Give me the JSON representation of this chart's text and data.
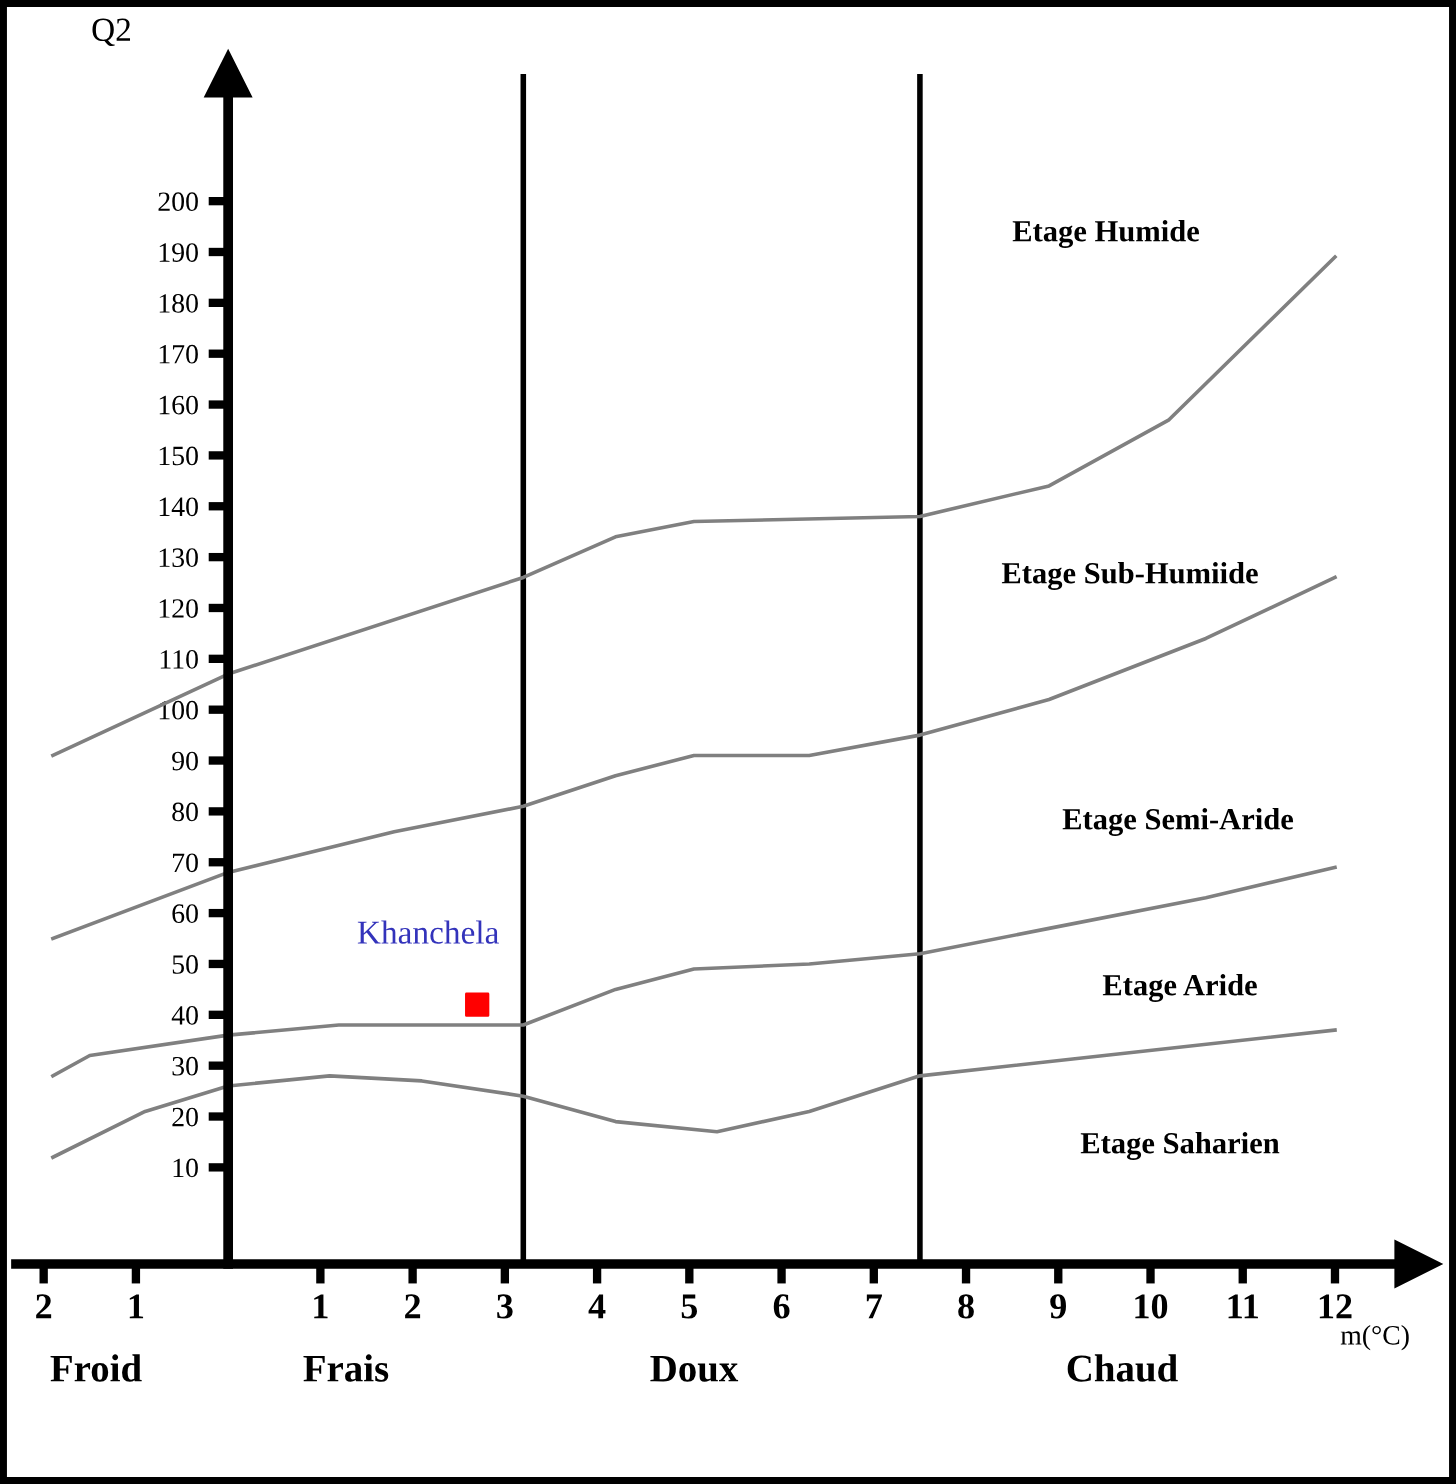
{
  "chart_data": {
    "type": "line",
    "xlabel": "m(°C)",
    "ylabel": "Q2",
    "xlim": [
      -2.3,
      12.9
    ],
    "ylim": [
      -9,
      225
    ],
    "xticks": [
      {
        "value": -2,
        "label": "2"
      },
      {
        "value": -1,
        "label": "1"
      },
      1,
      2,
      3,
      4,
      5,
      6,
      7,
      8,
      9,
      10,
      11,
      12
    ],
    "yticks": [
      10,
      20,
      30,
      40,
      50,
      60,
      70,
      80,
      90,
      100,
      110,
      120,
      130,
      140,
      150,
      160,
      170,
      180,
      190,
      200
    ],
    "grid": false,
    "legend": false,
    "marker": "none",
    "line_style": "solid",
    "series": [
      {
        "color": "#808080",
        "x": [
          -1.9,
          0,
          3.2,
          4.2,
          5.05,
          7.5,
          8.9,
          10.2,
          12
        ],
        "values": [
          91,
          107,
          126,
          134,
          137,
          138,
          144,
          157,
          189
        ]
      },
      {
        "color": "#808080",
        "x": [
          -1.9,
          0,
          1.8,
          3.2,
          4.2,
          5.05,
          6.3,
          7.5,
          8.9,
          10.6,
          12
        ],
        "values": [
          55,
          68,
          76,
          81,
          87,
          91,
          91,
          95,
          102,
          114,
          126
        ]
      },
      {
        "color": "#808080",
        "x": [
          -1.9,
          -1.5,
          0,
          1.2,
          2.5,
          3.2,
          4.2,
          5.05,
          6.3,
          7.5,
          8.9,
          10.6,
          12
        ],
        "values": [
          28,
          32,
          36,
          38,
          38,
          38,
          45,
          49,
          50,
          52,
          57,
          63,
          69
        ]
      },
      {
        "color": "#808080",
        "x": [
          -1.9,
          -0.9,
          0,
          1.1,
          2.1,
          3.2,
          4.2,
          5.3,
          6.3,
          7.5,
          9.5,
          12
        ],
        "values": [
          12,
          21,
          26,
          28,
          27,
          24,
          19,
          17,
          21,
          28,
          32,
          37
        ]
      },
      {
        "type": "scatter",
        "name": "Khanchela",
        "color": "#ff0000",
        "marker": "square",
        "x": [
          2.7
        ],
        "values": [
          42
        ]
      }
    ],
    "ref_lines": [
      {
        "axis": "x",
        "value": 3.2,
        "color": "#000000"
      },
      {
        "axis": "x",
        "value": 7.5,
        "color": "#000000"
      }
    ],
    "annotations": [
      "Etage Humide",
      "Etage Sub-Humiide",
      "Etage Semi-Aride",
      "Etage Aride",
      "Etage Saharien",
      "Froid",
      "Frais",
      "Doux",
      "Chaud"
    ]
  }
}
